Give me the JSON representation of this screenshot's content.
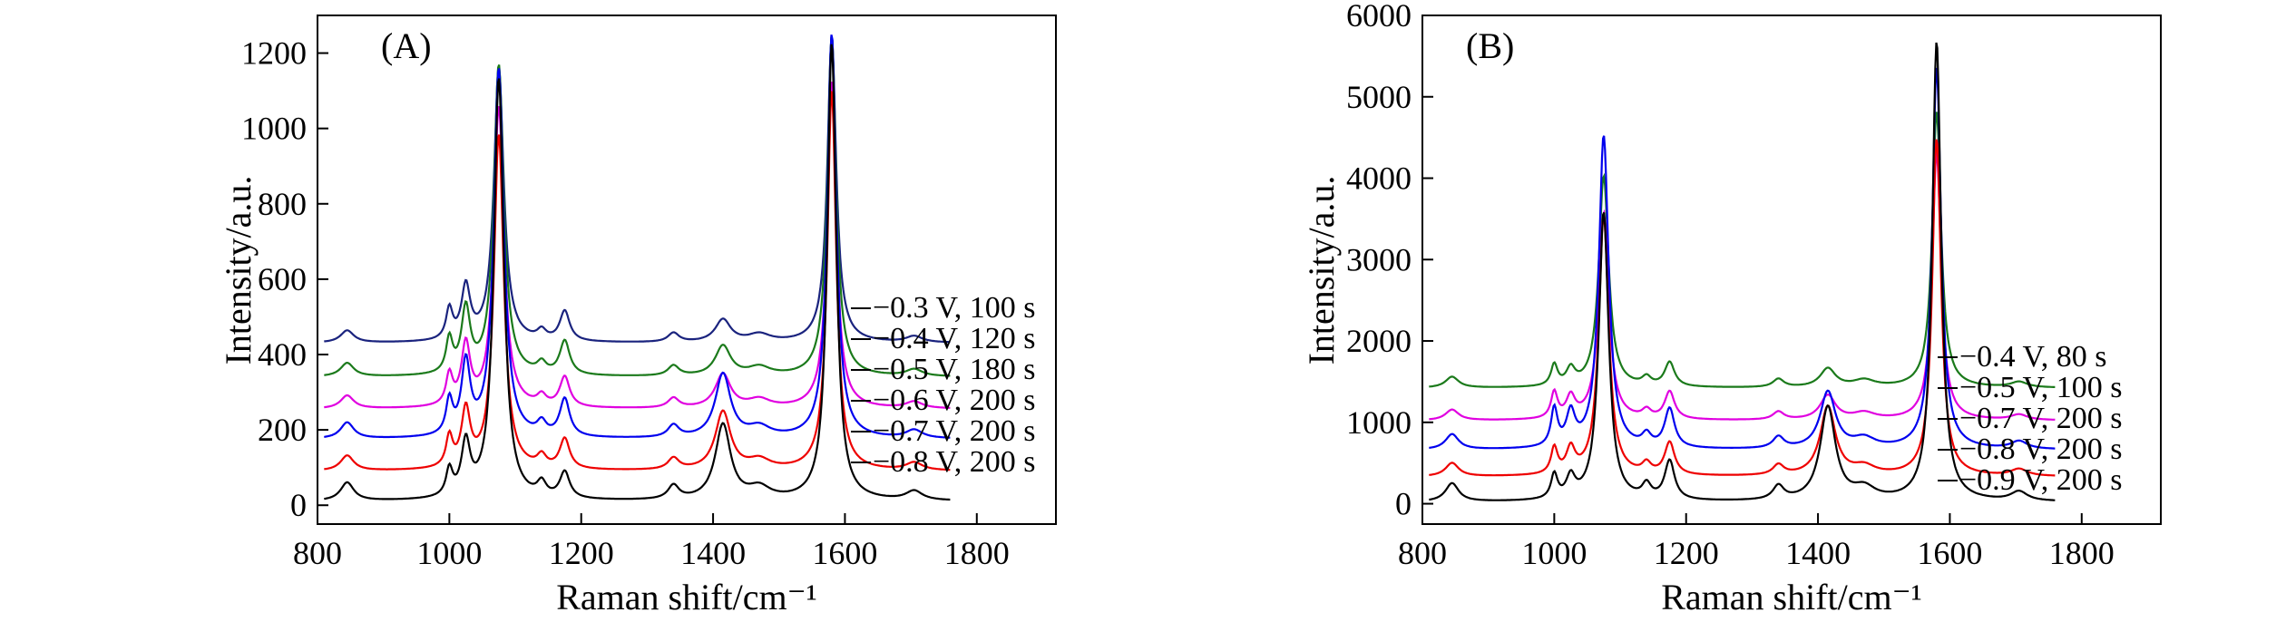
{
  "chart_data": [
    {
      "panel": "(A)",
      "type": "line",
      "xlabel": "Raman shift/cm⁻¹",
      "ylabel": "Intensity/a.u.",
      "xlim": [
        800,
        1920
      ],
      "ylim": [
        -50,
        1300
      ],
      "xticks": [
        800,
        1000,
        1200,
        1400,
        1600,
        1800
      ],
      "yticks": [
        0,
        200,
        400,
        600,
        800,
        1000,
        1200
      ],
      "grid": false,
      "series": [
        {
          "name": "−0.3 V, 100 s",
          "color": "#1a237e",
          "baseline": 430,
          "peaks": {
            "1000": 80,
            "1025": 140,
            "1075": 730,
            "1175": 80,
            "1415": 60,
            "1580": 815
          }
        },
        {
          "name": "−0.4 V, 120 s",
          "color": "#1b7a1b",
          "baseline": 340,
          "peaks": {
            "1000": 90,
            "1025": 170,
            "1075": 825,
            "1175": 90,
            "1415": 80,
            "1580": 905
          }
        },
        {
          "name": "−0.5 V, 180 s",
          "color": "#e000e0",
          "baseline": 255,
          "peaks": {
            "1000": 80,
            "1025": 160,
            "1075": 800,
            "1175": 80,
            "1415": 90,
            "1580": 870
          }
        },
        {
          "name": "−0.6 V, 200 s",
          "color": "#0000ee",
          "baseline": 175,
          "peaks": {
            "1000": 90,
            "1025": 190,
            "1075": 980,
            "1175": 100,
            "1415": 170,
            "1580": 1075
          }
        },
        {
          "name": "−0.7 V, 200 s",
          "color": "#ee0000",
          "baseline": 90,
          "peaks": {
            "1000": 80,
            "1025": 150,
            "1075": 890,
            "1175": 80,
            "1415": 155,
            "1580": 1010
          }
        },
        {
          "name": "−0.8 V, 200 s",
          "color": "#000000",
          "baseline": 10,
          "peaks": {
            "1000": 70,
            "1025": 140,
            "1075": 1120,
            "1175": 70,
            "1415": 200,
            "1580": 1215
          }
        }
      ]
    },
    {
      "panel": "(B)",
      "type": "line",
      "xlabel": "Raman shift/cm⁻¹",
      "ylabel": "Intensity/a.u.",
      "xlim": [
        800,
        1920
      ],
      "ylim": [
        -250,
        6000
      ],
      "xticks": [
        800,
        1000,
        1200,
        1400,
        1600,
        1800
      ],
      "yticks": [
        0,
        1000,
        2000,
        3000,
        4000,
        5000,
        6000
      ],
      "grid": false,
      "series": [
        {
          "name": "−0.4 V, 80 s",
          "color": "#1b7a1b",
          "baseline": 1420,
          "peaks": {
            "1000": 260,
            "1025": 200,
            "1075": 2600,
            "1175": 300,
            "1415": 230,
            "1580": 3400
          }
        },
        {
          "name": "−0.5 V, 100 s",
          "color": "#e000e0",
          "baseline": 1020,
          "peaks": {
            "1000": 320,
            "1025": 260,
            "1075": 2550,
            "1175": 340,
            "1415": 300,
            "1580": 3300
          }
        },
        {
          "name": "−0.7 V, 200 s",
          "color": "#0000ee",
          "baseline": 660,
          "peaks": {
            "1000": 460,
            "1025": 400,
            "1075": 3850,
            "1175": 480,
            "1415": 700,
            "1580": 4700
          }
        },
        {
          "name": "−0.8 V, 200 s",
          "color": "#ee0000",
          "baseline": 330,
          "peaks": {
            "1000": 320,
            "1025": 300,
            "1075": 3200,
            "1175": 400,
            "1415": 850,
            "1580": 4150
          }
        },
        {
          "name": "−0.9 V, 200 s",
          "color": "#000000",
          "baseline": 20,
          "peaks": {
            "1000": 300,
            "1025": 260,
            "1075": 3550,
            "1175": 480,
            "1415": 1150,
            "1580": 5650
          }
        }
      ]
    }
  ],
  "panels": {
    "a": {
      "label": "(A)",
      "xlabel": "Raman shift/cm⁻¹",
      "ylabel": "Intensity/a.u."
    },
    "b": {
      "label": "(B)",
      "xlabel": "Raman shift/cm⁻¹",
      "ylabel": "Intensity/a.u."
    }
  }
}
